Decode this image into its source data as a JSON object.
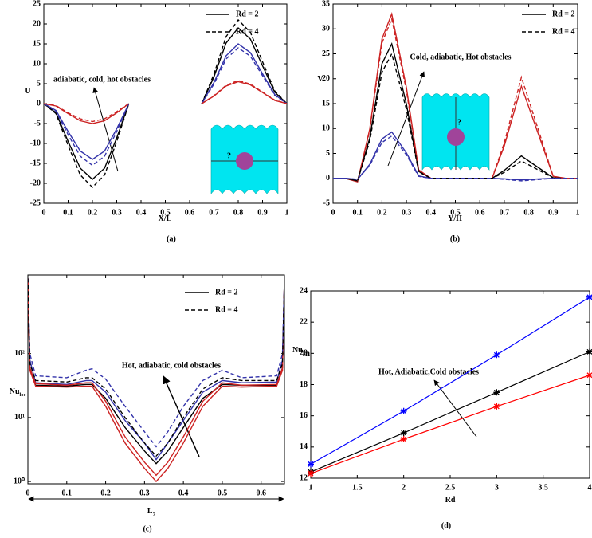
{
  "chart_data": [
    {
      "type": "line",
      "panel_label": "(a)",
      "xlabel": "X/L",
      "ylabel": "U",
      "annotation": "adiabatic, cold, hot obstacles",
      "inset_mark": "?",
      "xlim": [
        0,
        1
      ],
      "ylim": [
        -25,
        25
      ],
      "xticks": [
        0,
        0.1,
        0.2,
        0.3,
        0.4,
        0.5,
        0.6,
        0.7,
        0.8,
        0.9,
        1
      ],
      "yticks": [
        -25,
        -20,
        -15,
        -10,
        -5,
        0,
        5,
        10,
        15,
        20,
        25
      ],
      "legend": "upper right",
      "legend_line_color": "#000000",
      "x": [
        0,
        0.05,
        0.1,
        0.15,
        0.2,
        0.25,
        0.3,
        0.35,
        0.5,
        0.65,
        0.7,
        0.75,
        0.8,
        0.85,
        0.9,
        0.95,
        1
      ],
      "series": [
        {
          "name": "Rd = 2",
          "dash": "solid",
          "lines": [
            {
              "color": "#000000",
              "values": [
                0,
                -2.3,
                -9.5,
                -16.2,
                -19,
                -16.2,
                -8.6,
                0,
                null,
                0,
                6.7,
                15.2,
                19,
                16.2,
                9.5,
                2.9,
                0
              ]
            },
            {
              "color": "#3333aa",
              "values": [
                0,
                -1.7,
                -7,
                -11.9,
                -14,
                -11.9,
                -6.3,
                0,
                null,
                0,
                5.3,
                12,
                15,
                12.8,
                7.5,
                2.3,
                0
              ]
            },
            {
              "color": "#cc2222",
              "values": [
                0,
                -0.6,
                -2.5,
                -4.3,
                -5,
                -4.3,
                -2.3,
                0,
                null,
                0,
                1.9,
                4.4,
                5.5,
                4.7,
                2.8,
                0.8,
                0
              ]
            }
          ]
        },
        {
          "name": "Rd = 4",
          "dash": "dashed",
          "lines": [
            {
              "color": "#000000",
              "values": [
                0,
                -2.5,
                -10.5,
                -17.9,
                -21,
                -17.9,
                -9.5,
                0,
                null,
                0,
                7.4,
                16.8,
                21,
                17.9,
                10.5,
                3.2,
                0
              ]
            },
            {
              "color": "#3333aa",
              "values": [
                0,
                -1.9,
                -7.8,
                -13.2,
                -15.5,
                -13.2,
                -7,
                0,
                null,
                0,
                4.9,
                11.2,
                14,
                11.9,
                7,
                2.1,
                0
              ]
            },
            {
              "color": "#cc2222",
              "values": [
                0,
                -0.5,
                -2.3,
                -3.8,
                -4.5,
                -3.8,
                -2,
                0,
                null,
                0,
                2,
                4.6,
                5.8,
                4.9,
                2.9,
                0.9,
                0
              ]
            }
          ]
        }
      ]
    },
    {
      "type": "line",
      "panel_label": "(b)",
      "xlabel": "Y/H",
      "ylabel": "V",
      "annotation": "Cold, adiabatic, Hot obstacles",
      "inset_mark": "?",
      "xlim": [
        0,
        1
      ],
      "ylim": [
        -5,
        35
      ],
      "xticks": [
        0,
        0.1,
        0.2,
        0.3,
        0.4,
        0.5,
        0.6,
        0.7,
        0.8,
        0.9,
        1
      ],
      "yticks": [
        -5,
        0,
        5,
        10,
        15,
        20,
        25,
        30,
        35
      ],
      "legend": "upper right",
      "legend_line_color": "#000000",
      "x": [
        0,
        0.05,
        0.1,
        0.15,
        0.2,
        0.24,
        0.3,
        0.35,
        0.4,
        0.5,
        0.6,
        0.65,
        0.7,
        0.77,
        0.85,
        0.9,
        0.95,
        1
      ],
      "series": [
        {
          "name": "Rd = 2",
          "dash": "solid",
          "lines": [
            {
              "color": "#cc2222",
              "values": [
                0,
                0,
                -0.7,
                9.9,
                28,
                33,
                18.2,
                1.7,
                0,
                0,
                0,
                0,
                6.5,
                18.5,
                7.4,
                0.4,
                0,
                0
              ]
            },
            {
              "color": "#000000",
              "values": [
                0,
                0,
                -0.5,
                8.1,
                23,
                27,
                14.9,
                1.4,
                0,
                0,
                0,
                0,
                1.6,
                4.5,
                1.8,
                0.1,
                0,
                0
              ]
            },
            {
              "color": "#3333aa",
              "values": [
                0,
                0,
                -0.2,
                2.8,
                7.9,
                9.3,
                5.1,
                0.5,
                0,
                0,
                0,
                0,
                -0.1,
                -0.3,
                -0.1,
                0,
                0,
                0
              ]
            }
          ]
        },
        {
          "name": "Rd = 4",
          "dash": "dashed",
          "lines": [
            {
              "color": "#cc2222",
              "values": [
                0,
                0,
                -0.6,
                9.6,
                27.2,
                32,
                17.6,
                1.6,
                0,
                0,
                0,
                0,
                7.1,
                20.3,
                8.1,
                0.4,
                0,
                0
              ]
            },
            {
              "color": "#000000",
              "values": [
                0,
                0,
                -0.5,
                7.5,
                21.3,
                25,
                13.8,
                1.3,
                0,
                0,
                0,
                0,
                1.2,
                3.5,
                1.4,
                0.1,
                0,
                0
              ]
            },
            {
              "color": "#3333aa",
              "values": [
                0,
                0,
                -0.2,
                2.6,
                7.2,
                8.5,
                4.7,
                0.4,
                0,
                0,
                0,
                0,
                -0.2,
                -0.5,
                -0.2,
                0,
                0,
                0
              ]
            }
          ]
        }
      ]
    },
    {
      "type": "line",
      "panel_label": "(c)",
      "xlabel": "L",
      "xlabel_sub": "2",
      "ylabel": "Nu",
      "ylabel_sub": "loc",
      "annotation": "Hot, adiabatic, cold obstacles",
      "log_y": true,
      "xlim": [
        0,
        0.66
      ],
      "ylim": [
        0.92,
        1700
      ],
      "xticks": [
        0,
        0.1,
        0.2,
        0.3,
        0.4,
        0.5,
        0.6
      ],
      "yticks": [
        {
          "value": 1,
          "label": "10⁰"
        },
        {
          "value": 10,
          "label": "10¹"
        },
        {
          "value": 100,
          "label": "10²"
        }
      ],
      "legend": "upper right",
      "legend_line_color": "#000000",
      "x": [
        0,
        0.005,
        0.02,
        0.1,
        0.15,
        0.165,
        0.2,
        0.25,
        0.3,
        0.33,
        0.36,
        0.4,
        0.45,
        0.5,
        0.55,
        0.64,
        0.655,
        0.66
      ],
      "series": [
        {
          "name": "Rd = 2",
          "dash": "solid",
          "lines": [
            {
              "color": "#3333aa",
              "values": [
                1500,
                80,
                35,
                33,
                38,
                38,
                25,
                9,
                4,
                2.2,
                4,
                9,
                25,
                38,
                35,
                36,
                80,
                1500
              ]
            },
            {
              "color": "#000000",
              "values": [
                1500,
                60,
                32,
                31,
                33,
                33,
                20,
                7,
                3,
                1.9,
                3,
                7,
                20,
                33,
                32,
                32,
                60,
                1500
              ]
            },
            {
              "color": "#cc2222",
              "values": [
                1500,
                60,
                34,
                32,
                35,
                35,
                18,
                5,
                2,
                1.25,
                2,
                5,
                18,
                35,
                32,
                33,
                60,
                1500
              ]
            },
            {
              "color": "#cc2222",
              "values": [
                1500,
                55,
                31,
                30,
                31,
                31,
                15,
                4,
                1.6,
                1,
                1.6,
                4,
                15,
                31,
                30,
                31,
                55,
                1500
              ]
            }
          ]
        },
        {
          "name": "Rd = 4",
          "dash": "dashed",
          "lines": [
            {
              "color": "#3333aa",
              "values": [
                1500,
                100,
                45,
                42,
                55,
                58,
                40,
                15,
                6,
                3.5,
                6,
                15,
                38,
                55,
                42,
                45,
                100,
                1500
              ]
            },
            {
              "color": "#000000",
              "values": [
                1500,
                70,
                38,
                36,
                42,
                42,
                28,
                10,
                4,
                2.5,
                4,
                10,
                28,
                42,
                38,
                38,
                70,
                1500
              ]
            }
          ]
        }
      ]
    },
    {
      "type": "line",
      "panel_label": "(d)",
      "xlabel": "Rd",
      "ylabel": "Nu",
      "ylabel_sub": "m",
      "annotation": "Hot, Adiabatic,Cold obstacles",
      "marker": "asterisk",
      "xlim": [
        1,
        4
      ],
      "ylim": [
        12,
        24
      ],
      "xticks": [
        1,
        1.5,
        2,
        2.5,
        3,
        3.5,
        4
      ],
      "yticks": [
        12,
        14,
        16,
        18,
        20,
        22,
        24
      ],
      "x": [
        1,
        2,
        3,
        4
      ],
      "series": [
        {
          "color": "#0000ff",
          "values": [
            12.9,
            16.3,
            19.9,
            23.6
          ]
        },
        {
          "color": "#000000",
          "values": [
            12.4,
            14.9,
            17.5,
            20.1
          ]
        },
        {
          "color": "#ff0000",
          "values": [
            12.3,
            14.5,
            16.6,
            18.6
          ]
        }
      ]
    }
  ]
}
